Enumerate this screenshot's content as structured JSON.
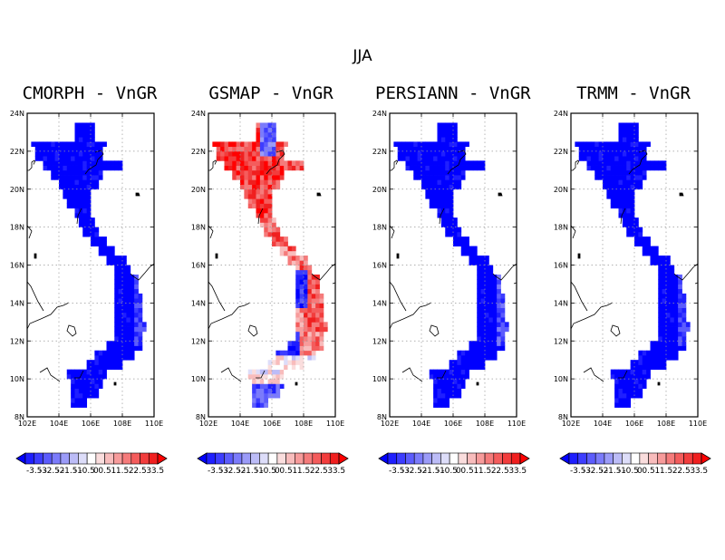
{
  "figure_title": "JJA",
  "panels": [
    {
      "title": "CMORPH - VnGR",
      "pattern": "cmorph"
    },
    {
      "title": "GSMAP - VnGR",
      "pattern": "gsmap"
    },
    {
      "title": "PERSIANN - VnGR",
      "pattern": "persiann"
    },
    {
      "title": "TRMM - VnGR",
      "pattern": "trmm"
    }
  ],
  "axes": {
    "lon_range": [
      102,
      110
    ],
    "lat_range": [
      8,
      24
    ],
    "lon_ticks": [
      "102E",
      "104E",
      "106E",
      "108E",
      "110E"
    ],
    "lat_ticks": [
      "8N",
      "10N",
      "12N",
      "14N",
      "16N",
      "18N",
      "20N",
      "22N",
      "24N"
    ],
    "grid": true
  },
  "colorbar": {
    "levels": [
      "-3.5",
      "-3",
      "-2.5",
      "-2",
      "-1.5",
      "-1",
      "-0.5",
      "0",
      "0.5",
      "1",
      "1.5",
      "2",
      "2.5",
      "3",
      "3.5"
    ],
    "colors": [
      "#0000ff",
      "#1f1fff",
      "#3d3dff",
      "#5c5cfd",
      "#7b7bfb",
      "#9b9bf8",
      "#bcbcf7",
      "#ddddf9",
      "#ffffff",
      "#fadddd",
      "#f8bcbc",
      "#f79b9b",
      "#f57b7b",
      "#f45c5c",
      "#f23d3d",
      "#f01f1f",
      "#ff0000"
    ]
  },
  "colors": {
    "strong_negative": "#0000ff",
    "strong_positive": "#ff0000"
  }
}
